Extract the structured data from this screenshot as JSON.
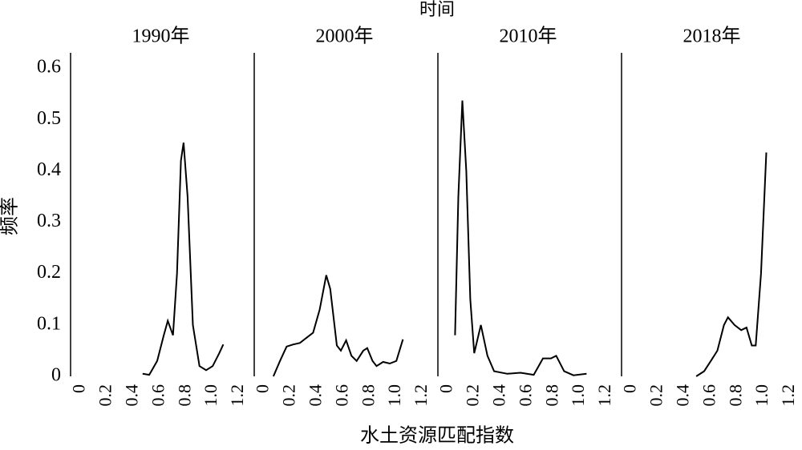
{
  "figure": {
    "title": "时间",
    "x_label": "水土资源匹配指数",
    "y_label": "频率"
  },
  "chart_data": [
    {
      "type": "line",
      "title": "1990年",
      "color": "#000000",
      "x": [
        0.47,
        0.52,
        0.58,
        0.63,
        0.66,
        0.7,
        0.73,
        0.76,
        0.78,
        0.81,
        0.85,
        0.9,
        0.95,
        1.0,
        1.05,
        1.08
      ],
      "values": [
        0.005,
        0.003,
        0.03,
        0.08,
        0.108,
        0.08,
        0.2,
        0.42,
        0.455,
        0.35,
        0.1,
        0.02,
        0.012,
        0.02,
        0.045,
        0.062
      ],
      "xlim": [
        -0.075,
        1.29
      ],
      "xticks": [
        0,
        0.2,
        0.4,
        0.6,
        0.8,
        {
          "value": 1,
          "label": "1.0"
        },
        1.2
      ],
      "ylim": [
        0,
        0.63
      ],
      "yticks": [
        0,
        0.1,
        0.2,
        0.3,
        0.4,
        0.5,
        0.6
      ]
    },
    {
      "type": "line",
      "title": "2000年",
      "color": "#000000",
      "x": [
        0.07,
        0.12,
        0.17,
        0.22,
        0.27,
        0.32,
        0.37,
        0.42,
        0.47,
        0.5,
        0.55,
        0.58,
        0.62,
        0.66,
        0.7,
        0.75,
        0.78,
        0.82,
        0.85,
        0.9,
        0.95,
        1.0,
        1.05
      ],
      "values": [
        0,
        0.03,
        0.058,
        0.062,
        0.065,
        0.075,
        0.085,
        0.13,
        0.197,
        0.17,
        0.06,
        0.05,
        0.07,
        0.04,
        0.03,
        0.05,
        0.055,
        0.03,
        0.02,
        0.028,
        0.025,
        0.03,
        0.072
      ],
      "xlim": [
        -0.075,
        1.29
      ],
      "xticks": [
        0,
        0.2,
        0.4,
        0.6,
        0.8,
        {
          "value": 1,
          "label": "1.0"
        },
        1.2
      ],
      "ylim": [
        0,
        0.63
      ]
    },
    {
      "type": "line",
      "title": "2010年",
      "color": "#000000",
      "x": [
        0.055,
        0.08,
        0.11,
        0.14,
        0.17,
        0.2,
        0.25,
        0.3,
        0.35,
        0.45,
        0.55,
        0.65,
        0.72,
        0.78,
        0.82,
        0.88,
        0.95,
        1.05
      ],
      "values": [
        0.08,
        0.35,
        0.537,
        0.4,
        0.15,
        0.045,
        0.1,
        0.04,
        0.01,
        0.005,
        0.007,
        0.003,
        0.035,
        0.035,
        0.04,
        0.01,
        0.002,
        0.005
      ],
      "xlim": [
        -0.075,
        1.29
      ],
      "xticks": [
        0,
        0.2,
        0.4,
        0.6,
        0.8,
        {
          "value": 1,
          "label": "1.0"
        },
        1.2
      ],
      "ylim": [
        0,
        0.63
      ]
    },
    {
      "type": "line",
      "title": "2018年",
      "color": "#000000",
      "x": [
        0.49,
        0.55,
        0.6,
        0.65,
        0.7,
        0.73,
        0.78,
        0.83,
        0.87,
        0.91,
        0.94,
        0.98,
        1.02
      ],
      "values": [
        0,
        0.01,
        0.03,
        0.05,
        0.1,
        0.115,
        0.1,
        0.09,
        0.095,
        0.06,
        0.06,
        0.2,
        0.436
      ],
      "xlim": [
        -0.075,
        1.29
      ],
      "xticks": [
        0,
        0.2,
        0.4,
        0.6,
        0.8,
        {
          "value": 1,
          "label": "1.0"
        },
        1.2
      ],
      "ylim": [
        0,
        0.63
      ]
    }
  ]
}
